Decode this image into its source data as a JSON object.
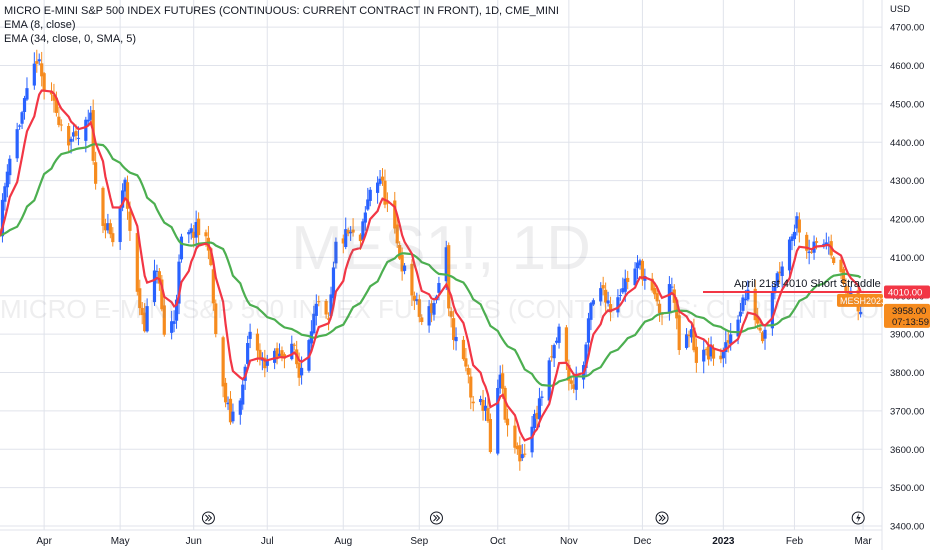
{
  "legend": {
    "title": "MICRO E-MINI S&P 500 INDEX FUTURES (CONTINUOUS: CURRENT CONTRACT IN FRONT), 1D, CME_MINI",
    "ema8": "EMA (8, close)",
    "ema34": "EMA (34, close, 0, SMA, 5)"
  },
  "watermark": {
    "symbol": "MES1!, 1D",
    "description": "MICRO E-MINI S&P 500 INDEX FUTURES (CONTINUOUS: CURRENT CONTRACT IN FRONT)"
  },
  "price_axis": {
    "currency": "USD"
  },
  "annotation": {
    "text": "April 21st 4010 Short Straddle",
    "level": 4010,
    "level_label": "4010.00"
  },
  "last_price": {
    "symbol": "MESH2023",
    "price_label": "3958.00",
    "countdown": "07:13:59"
  },
  "colors": {
    "up": "#2962ff",
    "down": "#f68b1e",
    "ema_fast": "#f23645",
    "ema_slow": "#4caf50",
    "level_line": "#f23645",
    "price_tag": "#f68b1e"
  },
  "chart_data": {
    "type": "candlestick",
    "title": "MICRO E-MINI S&P 500 INDEX FUTURES (CONTINUOUS: CURRENT CONTRACT IN FRONT), 1D, CME_MINI",
    "ylim": [
      3400,
      4750
    ],
    "y_ticks": [
      3400,
      3500,
      3600,
      3700,
      3800,
      3900,
      4000,
      4100,
      4200,
      4300,
      4400,
      4500,
      4600,
      4700
    ],
    "y_tick_labels": [
      "3400.00",
      "3500.00",
      "3600.00",
      "3700.00",
      "3800.00",
      "3900.00",
      "4000.00",
      "4100.00",
      "4200.00",
      "4300.00",
      "4400.00",
      "4500.00",
      "4600.00",
      "4700.00"
    ],
    "x_ticks": [
      {
        "date": "2022-04-01",
        "label": "Apr"
      },
      {
        "date": "2022-05-02",
        "label": "May"
      },
      {
        "date": "2022-06-01",
        "label": "Jun"
      },
      {
        "date": "2022-07-01",
        "label": "Jul"
      },
      {
        "date": "2022-08-01",
        "label": "Aug"
      },
      {
        "date": "2022-09-01",
        "label": "Sep"
      },
      {
        "date": "2022-10-03",
        "label": "Oct"
      },
      {
        "date": "2022-11-01",
        "label": "Nov"
      },
      {
        "date": "2022-12-01",
        "label": "Dec"
      },
      {
        "date": "2023-01-03",
        "label": "2023"
      },
      {
        "date": "2023-02-01",
        "label": "Feb"
      },
      {
        "date": "2023-03-01",
        "label": "Mar"
      }
    ],
    "x_range": [
      "2022-03-14",
      "2023-03-03"
    ],
    "price_path": [
      [
        "2022-03-14",
        4180
      ],
      [
        "2022-03-17",
        4340
      ],
      [
        "2022-03-21",
        4430
      ],
      [
        "2022-03-25",
        4520
      ],
      [
        "2022-03-29",
        4620
      ],
      [
        "2022-04-01",
        4540
      ],
      [
        "2022-04-06",
        4480
      ],
      [
        "2022-04-11",
        4410
      ],
      [
        "2022-04-14",
        4400
      ],
      [
        "2022-04-20",
        4460
      ],
      [
        "2022-04-22",
        4280
      ],
      [
        "2022-04-26",
        4180
      ],
      [
        "2022-04-29",
        4140
      ],
      [
        "2022-05-04",
        4290
      ],
      [
        "2022-05-09",
        4000
      ],
      [
        "2022-05-12",
        3930
      ],
      [
        "2022-05-17",
        4080
      ],
      [
        "2022-05-20",
        3900
      ],
      [
        "2022-05-24",
        3940
      ],
      [
        "2022-05-27",
        4140
      ],
      [
        "2022-06-02",
        4170
      ],
      [
        "2022-06-07",
        4140
      ],
      [
        "2022-06-10",
        3900
      ],
      [
        "2022-06-13",
        3750
      ],
      [
        "2022-06-16",
        3680
      ],
      [
        "2022-06-21",
        3760
      ],
      [
        "2022-06-24",
        3910
      ],
      [
        "2022-06-28",
        3830
      ],
      [
        "2022-07-01",
        3830
      ],
      [
        "2022-07-06",
        3840
      ],
      [
        "2022-07-11",
        3880
      ],
      [
        "2022-07-14",
        3790
      ],
      [
        "2022-07-19",
        3930
      ],
      [
        "2022-07-22",
        3970
      ],
      [
        "2022-07-26",
        3920
      ],
      [
        "2022-07-29",
        4130
      ],
      [
        "2022-08-03",
        4160
      ],
      [
        "2022-08-08",
        4140
      ],
      [
        "2022-08-12",
        4280
      ],
      [
        "2022-08-16",
        4310
      ],
      [
        "2022-08-19",
        4230
      ],
      [
        "2022-08-23",
        4130
      ],
      [
        "2022-08-26",
        4060
      ],
      [
        "2022-08-30",
        3990
      ],
      [
        "2022-09-02",
        3930
      ],
      [
        "2022-09-07",
        3980
      ],
      [
        "2022-09-12",
        4110
      ],
      [
        "2022-09-13",
        3950
      ],
      [
        "2022-09-16",
        3880
      ],
      [
        "2022-09-21",
        3790
      ],
      [
        "2022-09-23",
        3700
      ],
      [
        "2022-09-28",
        3720
      ],
      [
        "2022-09-30",
        3590
      ],
      [
        "2022-10-04",
        3790
      ],
      [
        "2022-10-07",
        3640
      ],
      [
        "2022-10-12",
        3580
      ],
      [
        "2022-10-14",
        3600
      ],
      [
        "2022-10-19",
        3700
      ],
      [
        "2022-10-24",
        3810
      ],
      [
        "2022-10-28",
        3910
      ],
      [
        "2022-11-02",
        3760
      ],
      [
        "2022-11-07",
        3820
      ],
      [
        "2022-11-10",
        3970
      ],
      [
        "2022-11-15",
        4020
      ],
      [
        "2022-11-18",
        3970
      ],
      [
        "2022-11-23",
        4030
      ],
      [
        "2022-11-30",
        4080
      ],
      [
        "2022-12-05",
        4000
      ],
      [
        "2022-12-09",
        3950
      ],
      [
        "2022-12-13",
        4040
      ],
      [
        "2022-12-16",
        3860
      ],
      [
        "2022-12-21",
        3900
      ],
      [
        "2022-12-23",
        3840
      ],
      [
        "2022-12-29",
        3850
      ],
      [
        "2023-01-03",
        3840
      ],
      [
        "2023-01-06",
        3900
      ],
      [
        "2023-01-11",
        3990
      ],
      [
        "2023-01-13",
        4000
      ],
      [
        "2023-01-19",
        3900
      ],
      [
        "2023-01-23",
        4020
      ],
      [
        "2023-01-27",
        4090
      ],
      [
        "2023-02-02",
        4200
      ],
      [
        "2023-02-06",
        4130
      ],
      [
        "2023-02-10",
        4120
      ],
      [
        "2023-02-15",
        4150
      ],
      [
        "2023-02-17",
        4100
      ],
      [
        "2023-02-22",
        4010
      ],
      [
        "2023-02-24",
        3990
      ],
      [
        "2023-02-28",
        3958
      ]
    ],
    "series": [
      {
        "name": "EMA (8, close)",
        "color": "#f23645"
      },
      {
        "name": "EMA (34, close, 0, SMA, 5)",
        "color": "#4caf50"
      }
    ]
  }
}
